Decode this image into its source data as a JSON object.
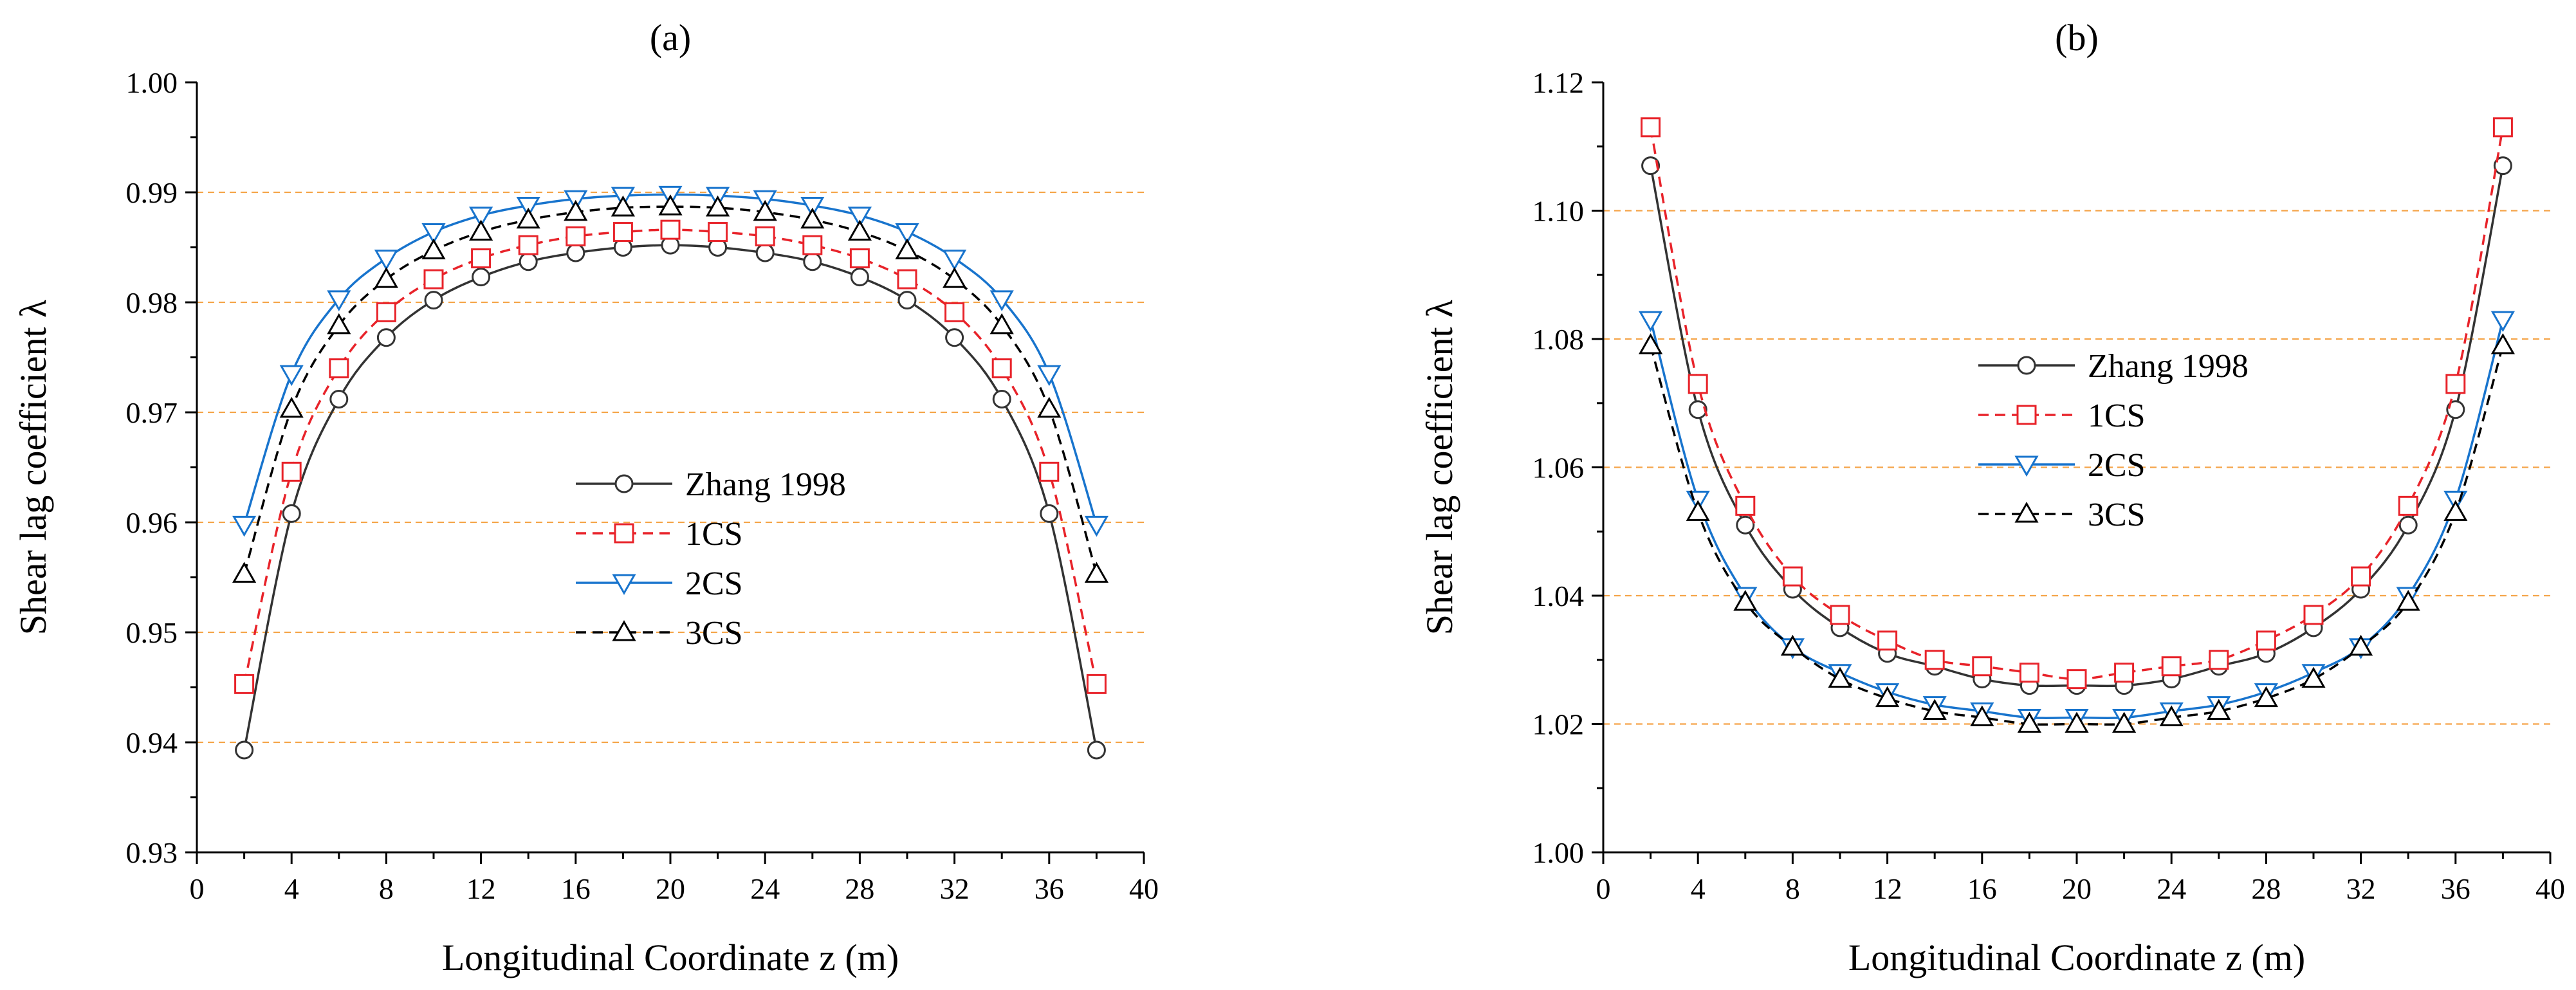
{
  "chart_data": [
    {
      "type": "line",
      "panel_label": "(a)",
      "xlabel": "Longitudinal Coordinate z (m)",
      "ylabel": "Shear lag coefficient λ",
      "xlim": [
        0,
        40
      ],
      "ylim": [
        0.93,
        1.0
      ],
      "x_ticks": [
        0,
        4,
        8,
        12,
        16,
        20,
        24,
        28,
        32,
        36,
        40
      ],
      "y_ticks": [
        0.93,
        0.94,
        0.95,
        0.96,
        0.97,
        0.98,
        0.99,
        1.0
      ],
      "y_tick_labels": [
        "0.93",
        "0.94",
        "0.95",
        "0.96",
        "0.97",
        "0.98",
        "0.99",
        "1.00"
      ],
      "gridlines_y": [
        0.94,
        0.95,
        0.96,
        0.97,
        0.98,
        0.99
      ],
      "legend_position": "center",
      "x": [
        2,
        4,
        6,
        8,
        10,
        12,
        14,
        16,
        18,
        20,
        22,
        24,
        26,
        28,
        30,
        32,
        34,
        36,
        38
      ],
      "series": [
        {
          "name": "Zhang 1998",
          "color": "#333333",
          "dash": "solid",
          "marker": "circle",
          "values": [
            0.9393,
            0.9608,
            0.9712,
            0.9768,
            0.9802,
            0.9823,
            0.9837,
            0.9845,
            0.985,
            0.9852,
            0.985,
            0.9845,
            0.9837,
            0.9823,
            0.9802,
            0.9768,
            0.9712,
            0.9608,
            0.9393
          ]
        },
        {
          "name": "1CS",
          "color": "#e8232a",
          "dash": "dashed",
          "marker": "square",
          "values": [
            0.9453,
            0.9646,
            0.974,
            0.9791,
            0.9821,
            0.984,
            0.9852,
            0.986,
            0.9864,
            0.9866,
            0.9864,
            0.986,
            0.9852,
            0.984,
            0.9821,
            0.9791,
            0.974,
            0.9646,
            0.9453
          ]
        },
        {
          "name": "2CS",
          "color": "#1874cd",
          "dash": "solid",
          "marker": "triangle-down",
          "values": [
            0.9598,
            0.9735,
            0.9803,
            0.984,
            0.9864,
            0.9879,
            0.9888,
            0.9894,
            0.9897,
            0.9898,
            0.9897,
            0.9894,
            0.9888,
            0.9879,
            0.9864,
            0.984,
            0.9803,
            0.9735,
            0.9598
          ]
        },
        {
          "name": "3CS",
          "color": "#000000",
          "dash": "dashed",
          "marker": "triangle-up",
          "values": [
            0.9553,
            0.9703,
            0.9779,
            0.9821,
            0.9847,
            0.9864,
            0.9875,
            0.9882,
            0.9886,
            0.9887,
            0.9886,
            0.9882,
            0.9875,
            0.9864,
            0.9847,
            0.9821,
            0.9779,
            0.9703,
            0.9553
          ]
        }
      ]
    },
    {
      "type": "line",
      "panel_label": "(b)",
      "xlabel": "Longitudinal Coordinate z (m)",
      "ylabel": "Shear lag coefficient λ",
      "xlim": [
        0,
        40
      ],
      "ylim": [
        1.0,
        1.12
      ],
      "x_ticks": [
        0,
        4,
        8,
        12,
        16,
        20,
        24,
        28,
        32,
        36,
        40
      ],
      "y_ticks": [
        1.0,
        1.02,
        1.04,
        1.06,
        1.08,
        1.1,
        1.12
      ],
      "y_tick_labels": [
        "1.00",
        "1.02",
        "1.04",
        "1.06",
        "1.08",
        "1.10",
        "1.12"
      ],
      "gridlines_y": [
        1.02,
        1.04,
        1.06,
        1.08,
        1.1
      ],
      "legend_position": "upper-center",
      "x": [
        2,
        4,
        6,
        8,
        10,
        12,
        14,
        16,
        18,
        20,
        22,
        24,
        26,
        28,
        30,
        32,
        34,
        36,
        38
      ],
      "series": [
        {
          "name": "Zhang 1998",
          "color": "#333333",
          "dash": "solid",
          "marker": "circle",
          "values": [
            1.107,
            1.069,
            1.051,
            1.041,
            1.035,
            1.031,
            1.029,
            1.027,
            1.026,
            1.026,
            1.026,
            1.027,
            1.029,
            1.031,
            1.035,
            1.041,
            1.051,
            1.069,
            1.107
          ]
        },
        {
          "name": "1CS",
          "color": "#e8232a",
          "dash": "dashed",
          "marker": "square",
          "values": [
            1.113,
            1.073,
            1.054,
            1.043,
            1.037,
            1.033,
            1.03,
            1.029,
            1.028,
            1.027,
            1.028,
            1.029,
            1.03,
            1.033,
            1.037,
            1.043,
            1.054,
            1.073,
            1.113
          ]
        },
        {
          "name": "2CS",
          "color": "#1874cd",
          "dash": "solid",
          "marker": "triangle-down",
          "values": [
            1.083,
            1.055,
            1.04,
            1.032,
            1.028,
            1.025,
            1.023,
            1.022,
            1.021,
            1.021,
            1.021,
            1.022,
            1.023,
            1.025,
            1.028,
            1.032,
            1.04,
            1.055,
            1.083
          ]
        },
        {
          "name": "3CS",
          "color": "#000000",
          "dash": "dashed",
          "marker": "triangle-up",
          "values": [
            1.079,
            1.053,
            1.039,
            1.032,
            1.027,
            1.024,
            1.022,
            1.021,
            1.02,
            1.02,
            1.02,
            1.021,
            1.022,
            1.024,
            1.027,
            1.032,
            1.039,
            1.053,
            1.079
          ]
        }
      ]
    }
  ],
  "colors": {
    "gridline": "#f5a54a",
    "axis": "#000000"
  }
}
